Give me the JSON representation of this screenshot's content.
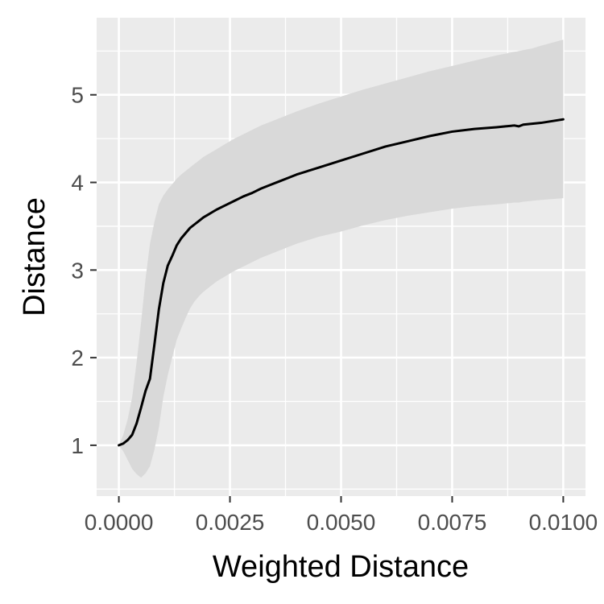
{
  "chart_data": {
    "type": "line",
    "xlabel": "Weighted Distance",
    "ylabel": "Distance",
    "xlim": [
      -0.0005,
      0.0105
    ],
    "ylim": [
      0.42,
      5.88
    ],
    "x_ticks": [
      0.0,
      0.0025,
      0.005,
      0.0075,
      0.01
    ],
    "x_tick_labels": [
      "0.0000",
      "0.0025",
      "0.0050",
      "0.0075",
      "0.0100"
    ],
    "y_ticks": [
      1,
      2,
      3,
      4,
      5
    ],
    "y_tick_labels": [
      "1",
      "2",
      "3",
      "4",
      "5"
    ],
    "grid": true,
    "legend": "none",
    "colors": {
      "panel": "#ebebeb",
      "grid": "#ffffff",
      "ribbon": "#d9d9d9",
      "line": "#000000",
      "tick_text": "#4d4d4d"
    },
    "series": [
      {
        "x": [
          0.0,
          0.0001,
          0.0002,
          0.0003,
          0.0004,
          0.0005,
          0.0006,
          0.0007,
          0.0008,
          0.0009,
          0.001,
          0.0011,
          0.0012,
          0.0013,
          0.0014,
          0.0015,
          0.0016,
          0.0017,
          0.0018,
          0.0019,
          0.002,
          0.0021,
          0.0022,
          0.0024,
          0.0026,
          0.0028,
          0.003,
          0.0032,
          0.0034,
          0.0036,
          0.0038,
          0.004,
          0.0045,
          0.005,
          0.0055,
          0.006,
          0.0065,
          0.007,
          0.0075,
          0.008,
          0.0085,
          0.0087,
          0.0089,
          0.009,
          0.0091,
          0.0093,
          0.0095,
          0.01
        ],
        "y": [
          1.0,
          1.02,
          1.06,
          1.12,
          1.25,
          1.43,
          1.62,
          1.76,
          2.15,
          2.55,
          2.85,
          3.05,
          3.16,
          3.28,
          3.36,
          3.42,
          3.48,
          3.52,
          3.56,
          3.6,
          3.63,
          3.66,
          3.69,
          3.74,
          3.79,
          3.84,
          3.88,
          3.93,
          3.97,
          4.01,
          4.05,
          4.09,
          4.17,
          4.25,
          4.33,
          4.41,
          4.47,
          4.53,
          4.58,
          4.61,
          4.63,
          4.64,
          4.65,
          4.64,
          4.66,
          4.67,
          4.68,
          4.72
        ],
        "lower": [
          1.0,
          0.93,
          0.83,
          0.73,
          0.67,
          0.63,
          0.68,
          0.76,
          0.95,
          1.2,
          1.55,
          1.8,
          2.0,
          2.2,
          2.33,
          2.45,
          2.56,
          2.64,
          2.7,
          2.75,
          2.79,
          2.83,
          2.87,
          2.93,
          2.99,
          3.04,
          3.09,
          3.14,
          3.18,
          3.22,
          3.26,
          3.3,
          3.38,
          3.44,
          3.51,
          3.57,
          3.62,
          3.66,
          3.7,
          3.73,
          3.75,
          3.76,
          3.77,
          3.77,
          3.78,
          3.79,
          3.8,
          3.82
        ],
        "upper": [
          1.0,
          1.12,
          1.3,
          1.55,
          1.95,
          2.4,
          2.9,
          3.3,
          3.55,
          3.75,
          3.85,
          3.92,
          3.98,
          4.04,
          4.09,
          4.13,
          4.17,
          4.21,
          4.25,
          4.29,
          4.32,
          4.35,
          4.38,
          4.44,
          4.5,
          4.55,
          4.6,
          4.65,
          4.69,
          4.73,
          4.77,
          4.81,
          4.9,
          4.98,
          5.06,
          5.13,
          5.2,
          5.27,
          5.33,
          5.39,
          5.45,
          5.47,
          5.49,
          5.5,
          5.51,
          5.53,
          5.56,
          5.63
        ]
      }
    ]
  }
}
